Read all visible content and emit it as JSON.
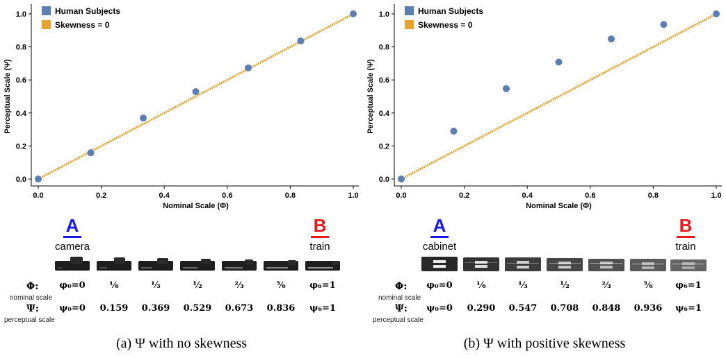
{
  "colors": {
    "human": "#5b7fb3",
    "skew": "#e8a32e",
    "A": "#1a1ae6",
    "B": "#e61a1a"
  },
  "chart_data": [
    {
      "type": "scatter",
      "xlabel": "Nominal Scale (Φ)",
      "ylabel": "Perceptual Scale (Ψ)",
      "xlim": [
        0.0,
        1.0
      ],
      "ylim": [
        0.0,
        1.0
      ],
      "xticks": [
        "0.0",
        "0.2",
        "0.4",
        "0.6",
        "0.8",
        "1.0"
      ],
      "yticks": [
        "0.0",
        "0.2",
        "0.4",
        "0.6",
        "0.8",
        "1.0"
      ],
      "legend": [
        "Human Subjects",
        "Skewness = 0"
      ],
      "legend_position": "top-left",
      "series": [
        {
          "name": "Human Subjects",
          "x": [
            0,
            0.1667,
            0.3333,
            0.5,
            0.6667,
            0.8333,
            1.0
          ],
          "y": [
            0,
            0.159,
            0.369,
            0.529,
            0.673,
            0.836,
            1.0
          ]
        },
        {
          "name": "Skewness = 0",
          "x": [
            0,
            1.0
          ],
          "y": [
            0,
            1.0
          ]
        }
      ]
    },
    {
      "type": "scatter",
      "xlabel": "Nominal Scale (Φ)",
      "ylabel": "Perceptual Scale (Ψ)",
      "xlim": [
        0.0,
        1.0
      ],
      "ylim": [
        0.0,
        1.0
      ],
      "xticks": [
        "0.0",
        "0.2",
        "0.4",
        "0.6",
        "0.8",
        "1.0"
      ],
      "yticks": [
        "0.0",
        "0.2",
        "0.4",
        "0.6",
        "0.8",
        "1.0"
      ],
      "legend": [
        "Human Subjects",
        "Skewness = 0"
      ],
      "legend_position": "top-left",
      "series": [
        {
          "name": "Human Subjects",
          "x": [
            0,
            0.1667,
            0.3333,
            0.5,
            0.6667,
            0.8333,
            1.0
          ],
          "y": [
            0,
            0.29,
            0.547,
            0.708,
            0.848,
            0.936,
            1.0
          ]
        },
        {
          "name": "Skewness = 0",
          "x": [
            0,
            1.0
          ],
          "y": [
            0,
            1.0
          ]
        }
      ]
    }
  ],
  "panels": [
    {
      "endpoint_a": {
        "letter": "A",
        "word": "camera"
      },
      "endpoint_b": {
        "letter": "B",
        "word": "train"
      },
      "thumb_style": "camera-train",
      "phi_label": "Φ:",
      "phi_sub": "nominal scale",
      "psi_label": "Ψ:",
      "psi_sub": "perceptual scale",
      "phi_values": [
        "φ₀=0",
        "⅙",
        "⅓",
        "½",
        "⅔",
        "⅚",
        "φ₆=1"
      ],
      "psi_values": [
        "ψ₀=0",
        "0.159",
        "0.369",
        "0.529",
        "0.673",
        "0.836",
        "ψ₆=1"
      ],
      "caption": "(a) Ψ with no skewness"
    },
    {
      "endpoint_a": {
        "letter": "A",
        "word": "cabinet"
      },
      "endpoint_b": {
        "letter": "B",
        "word": "train"
      },
      "thumb_style": "cabinet-train",
      "phi_label": "Φ:",
      "phi_sub": "nominal scale",
      "psi_label": "Ψ:",
      "psi_sub": "perceptual scale",
      "phi_values": [
        "φ₀=0",
        "⅙",
        "⅓",
        "½",
        "⅔",
        "⅚",
        "φ₆=1"
      ],
      "psi_values": [
        "ψ₀=0",
        "0.290",
        "0.547",
        "0.708",
        "0.848",
        "0.936",
        "ψ₆=1"
      ],
      "caption": "(b) Ψ with positive skewness"
    }
  ]
}
